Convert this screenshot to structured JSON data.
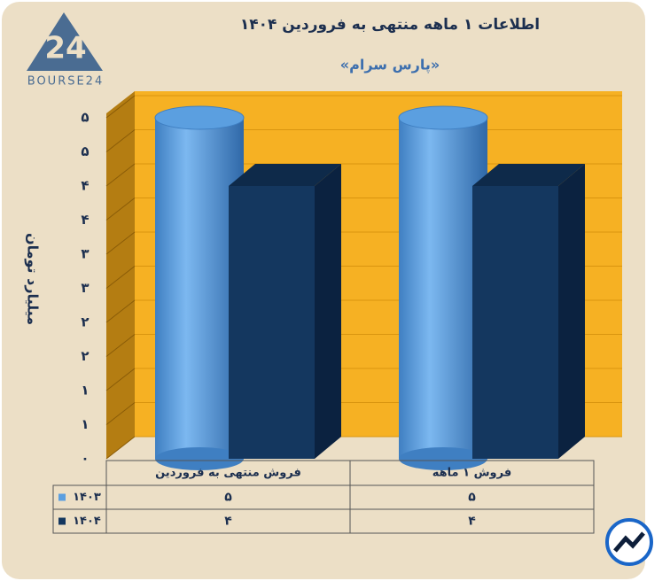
{
  "logo_text": "BOURSE24",
  "chart_data": {
    "type": "bar3d",
    "title": "اطلاعات ۱ ماهه منتهی به فروردین ۱۴۰۴",
    "subtitle": "«پارس سرام»",
    "y_label": "میلیارد تومان",
    "categories": [
      "فروش منتهی به  فروردین",
      "فروش ۱ ماهه"
    ],
    "series": [
      {
        "name": "۱۴۰۳",
        "color": "#5b9fe0",
        "values": [
          5,
          5
        ],
        "value_labels": [
          "۵",
          "۵"
        ]
      },
      {
        "name": "۱۴۰۴",
        "color": "#14375f",
        "values": [
          4,
          4
        ],
        "value_labels": [
          "۴",
          "۴"
        ]
      }
    ],
    "ylim": [
      0,
      5
    ],
    "yticks": [
      {
        "value": 0,
        "label": "۰"
      },
      {
        "value": 0.5,
        "label": "۱"
      },
      {
        "value": 1,
        "label": "۱"
      },
      {
        "value": 1.5,
        "label": "۲"
      },
      {
        "value": 2,
        "label": "۲"
      },
      {
        "value": 2.5,
        "label": "۳"
      },
      {
        "value": 3,
        "label": "۳"
      },
      {
        "value": 3.5,
        "label": "۴"
      },
      {
        "value": 4,
        "label": "۴"
      },
      {
        "value": 4.5,
        "label": "۵"
      },
      {
        "value": 5,
        "label": "۵"
      }
    ],
    "grid": true
  }
}
